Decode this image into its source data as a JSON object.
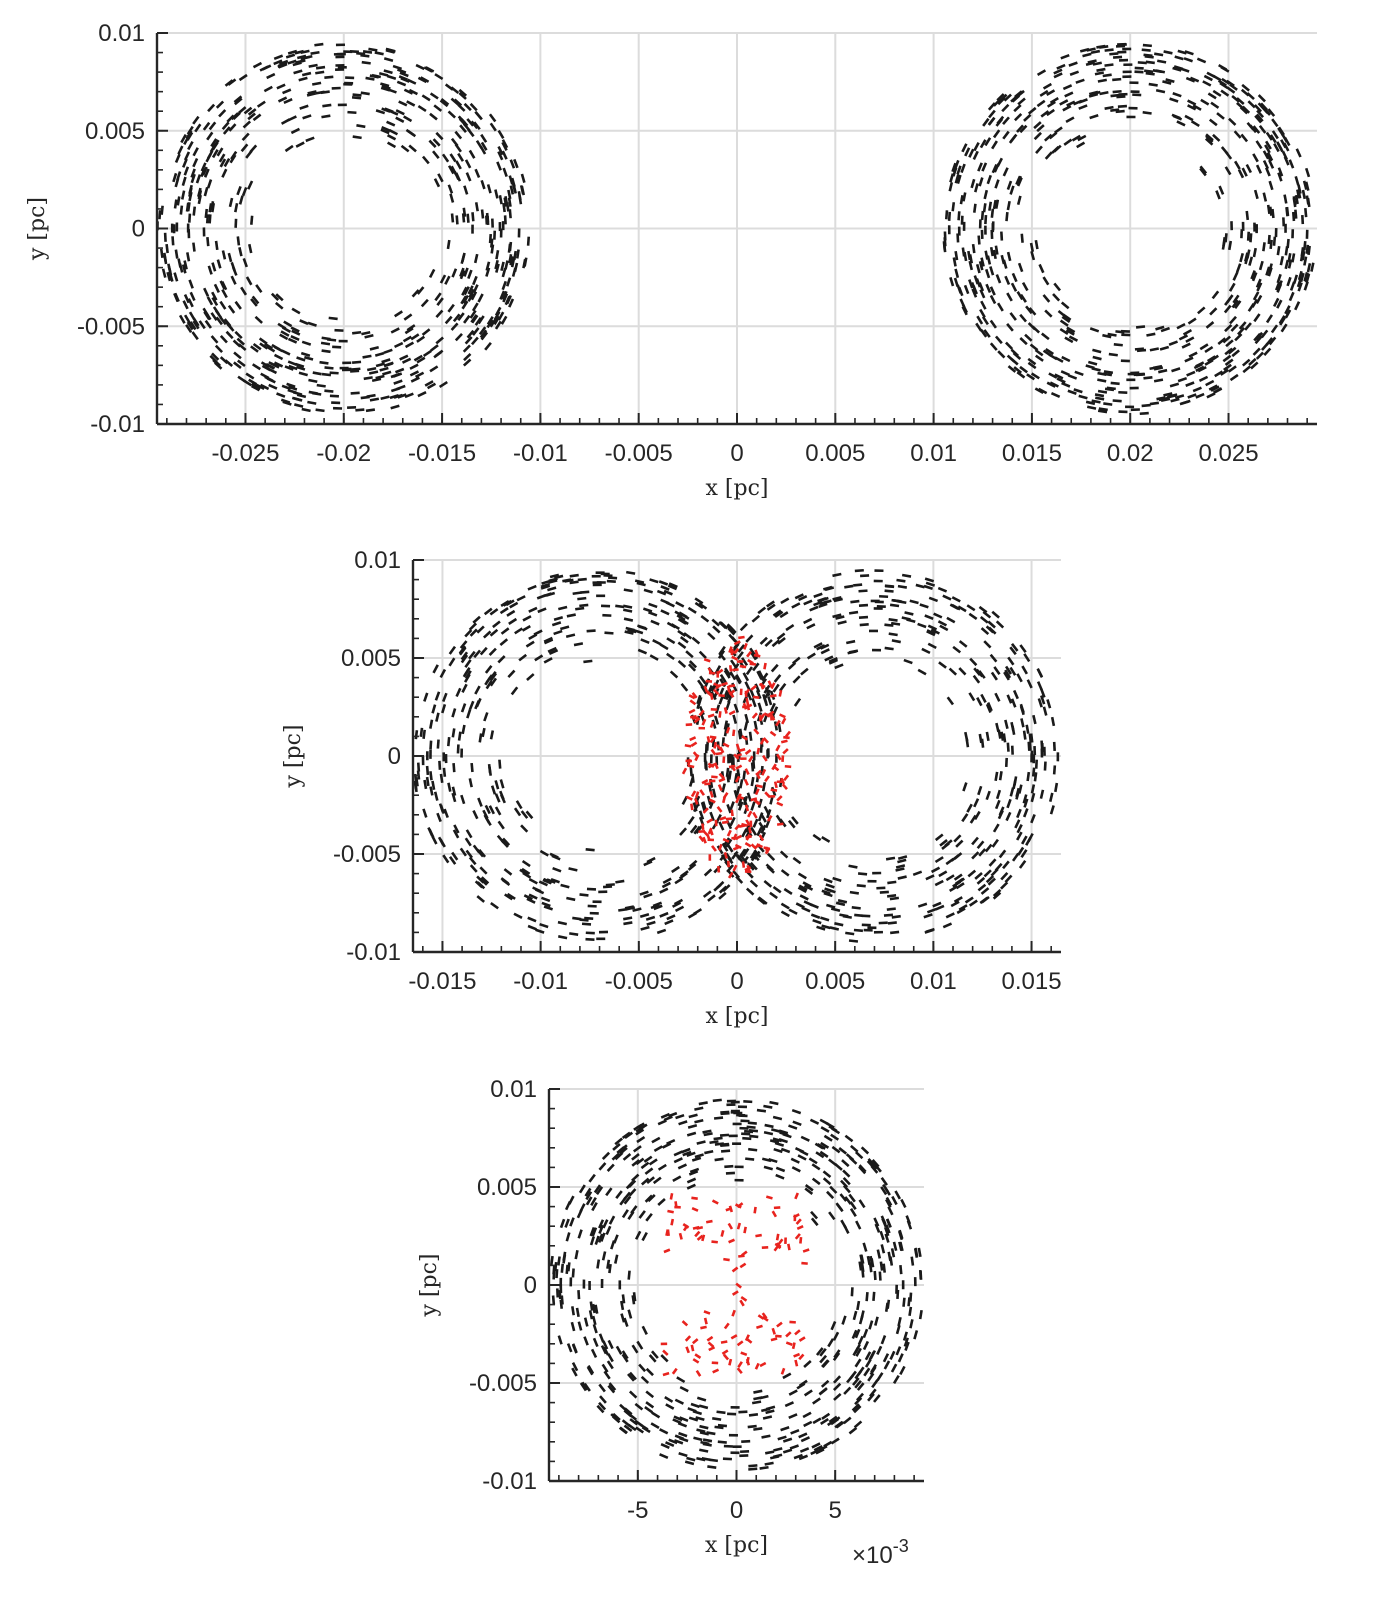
{
  "chart_data": [
    {
      "type": "scatter",
      "title": "",
      "xlabel": "x [pc]",
      "ylabel": "y [pc]",
      "xlim": [
        -0.0295,
        0.0295
      ],
      "ylim": [
        -0.01,
        0.01
      ],
      "xticks": [
        -0.025,
        -0.02,
        -0.015,
        -0.01,
        -0.005,
        0,
        0.005,
        0.01,
        0.015,
        0.02,
        0.025
      ],
      "xtick_labels": [
        "-0.025",
        "-0.02",
        "-0.015",
        "-0.01",
        "-0.005",
        "0",
        "0.005",
        "0.01",
        "0.015",
        "0.02",
        "0.025"
      ],
      "yticks": [
        0.01,
        0.005,
        0,
        -0.005,
        -0.01
      ],
      "ytick_labels": [
        "0.01",
        "0.005",
        "0",
        "-0.005",
        "-0.01"
      ],
      "grid": true,
      "multiplier_label": "",
      "series": [
        {
          "color": "#1a1a1a",
          "shape": "annulus",
          "center": [
            -0.02,
            0
          ],
          "r_inner": 0.0045,
          "r_outer": 0.0095,
          "count": 700
        },
        {
          "color": "#1a1a1a",
          "shape": "annulus",
          "center": [
            0.02,
            0
          ],
          "r_inner": 0.0045,
          "r_outer": 0.0095,
          "count": 700
        }
      ]
    },
    {
      "type": "scatter",
      "title": "",
      "xlabel": "x [pc]",
      "ylabel": "y [pc]",
      "xlim": [
        -0.0165,
        0.0165
      ],
      "ylim": [
        -0.01,
        0.01
      ],
      "xticks": [
        -0.015,
        -0.01,
        -0.005,
        0,
        0.005,
        0.01,
        0.015
      ],
      "xtick_labels": [
        "-0.015",
        "-0.01",
        "-0.005",
        "0",
        "0.005",
        "0.01",
        "0.015"
      ],
      "yticks": [
        0.01,
        0.005,
        0,
        -0.005,
        -0.01
      ],
      "ytick_labels": [
        "0.01",
        "0.005",
        "0",
        "-0.005",
        "-0.01"
      ],
      "grid": true,
      "multiplier_label": "",
      "series": [
        {
          "color": "#1a1a1a",
          "shape": "annulus",
          "center": [
            -0.007,
            0
          ],
          "r_inner": 0.0045,
          "r_outer": 0.0095,
          "count": 520
        },
        {
          "color": "#1a1a1a",
          "shape": "annulus",
          "center": [
            0.007,
            0
          ],
          "r_inner": 0.0045,
          "r_outer": 0.0095,
          "count": 520
        },
        {
          "color": "#e8231e",
          "shape": "lens",
          "center": [
            0,
            0
          ],
          "half_width": 0.0027,
          "half_height": 0.0062,
          "count": 230
        }
      ]
    },
    {
      "type": "scatter",
      "title": "",
      "xlabel": "x [pc]",
      "ylabel": "y [pc]",
      "xlim": [
        -0.0095,
        0.0095
      ],
      "ylim": [
        -0.01,
        0.01
      ],
      "xticks": [
        -0.005,
        0,
        0.005
      ],
      "xtick_labels": [
        "-5",
        "0",
        "5"
      ],
      "yticks": [
        0.01,
        0.005,
        0,
        -0.005,
        -0.01
      ],
      "ytick_labels": [
        "0.01",
        "0.005",
        "0",
        "-0.005",
        "-0.01"
      ],
      "grid": true,
      "multiplier_label": "×10-3",
      "series": [
        {
          "color": "#1a1a1a",
          "shape": "annulus",
          "center": [
            0,
            0
          ],
          "r_inner": 0.0048,
          "r_outer": 0.0095,
          "count": 620
        },
        {
          "color": "#e8231e",
          "shape": "cap",
          "center": [
            0,
            0.0028
          ],
          "half_width": 0.0037,
          "half_height": 0.0018,
          "count": 55
        },
        {
          "color": "#e8231e",
          "shape": "cap",
          "center": [
            0,
            -0.003
          ],
          "half_width": 0.0037,
          "half_height": 0.0016,
          "count": 55
        },
        {
          "color": "#e8231e",
          "shape": "stem",
          "center": [
            0,
            0
          ],
          "half_width": 0.0004,
          "half_height": 0.0012,
          "count": 6
        }
      ]
    }
  ]
}
